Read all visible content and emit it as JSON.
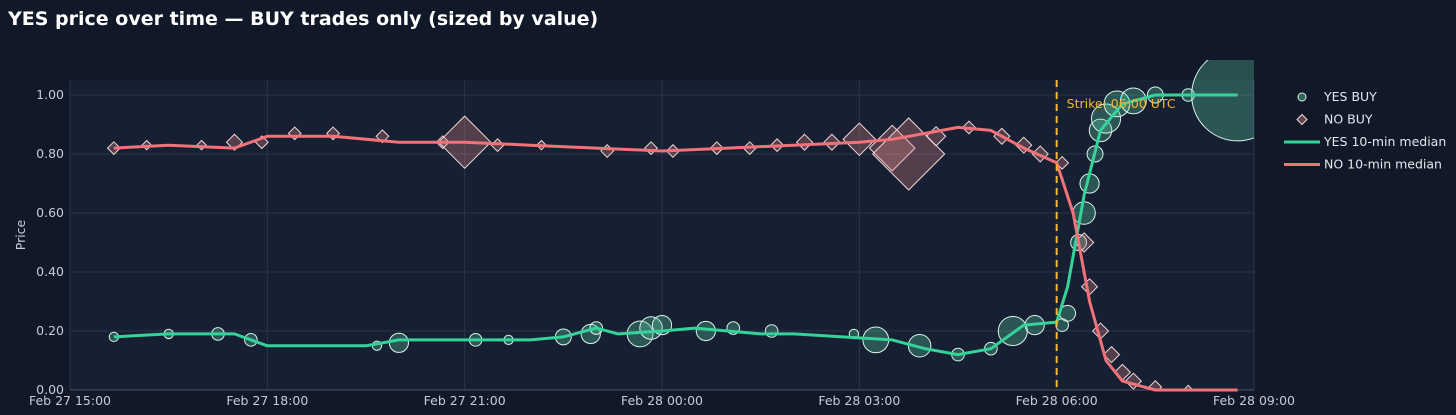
{
  "chart_data": {
    "type": "scatter",
    "title": "YES price over time — BUY trades only (sized by value)",
    "xlabel": "",
    "ylabel": "Price",
    "x_range": [
      "2026-02-27T15:00",
      "2026-02-28T09:00"
    ],
    "xticks": [
      {
        "t": "2026-02-27T15:00",
        "label": "Feb 27 15:00"
      },
      {
        "t": "2026-02-27T18:00",
        "label": "Feb 27 18:00"
      },
      {
        "t": "2026-02-27T21:00",
        "label": "Feb 27 21:00"
      },
      {
        "t": "2026-02-28T00:00",
        "label": "Feb 28 00:00"
      },
      {
        "t": "2026-02-28T03:00",
        "label": "Feb 28 03:00"
      },
      {
        "t": "2026-02-28T06:00",
        "label": "Feb 28 06:00"
      },
      {
        "t": "2026-02-28T09:00",
        "label": "Feb 28 09:00"
      }
    ],
    "ylim": [
      0,
      1
    ],
    "yticks": [
      {
        "v": 0.0,
        "label": "0.00"
      },
      {
        "v": 0.2,
        "label": "0.20"
      },
      {
        "v": 0.4,
        "label": "0.40"
      },
      {
        "v": 0.6,
        "label": "0.60"
      },
      {
        "v": 0.8,
        "label": "0.80"
      },
      {
        "v": 1.0,
        "label": "1.00"
      }
    ],
    "grid": true,
    "legend_position": "right",
    "annotation": {
      "t": "2026-02-28T06:00",
      "label": "Strike: 06:00 UTC",
      "color": "#f5b731"
    },
    "series": [
      {
        "name": "YES BUY",
        "kind": "markers",
        "symbol": "circle",
        "color": "#5fd4a8",
        "points": [
          {
            "t": "2026-02-27T15:40",
            "v": 0.18,
            "s": 1
          },
          {
            "t": "2026-02-27T16:30",
            "v": 0.19,
            "s": 1
          },
          {
            "t": "2026-02-27T17:15",
            "v": 0.19,
            "s": 2
          },
          {
            "t": "2026-02-27T17:45",
            "v": 0.17,
            "s": 2
          },
          {
            "t": "2026-02-27T19:40",
            "v": 0.15,
            "s": 1
          },
          {
            "t": "2026-02-27T20:00",
            "v": 0.16,
            "s": 4
          },
          {
            "t": "2026-02-27T21:10",
            "v": 0.17,
            "s": 2
          },
          {
            "t": "2026-02-27T21:40",
            "v": 0.17,
            "s": 1
          },
          {
            "t": "2026-02-27T22:30",
            "v": 0.18,
            "s": 3
          },
          {
            "t": "2026-02-27T22:55",
            "v": 0.19,
            "s": 4
          },
          {
            "t": "2026-02-27T23:00",
            "v": 0.21,
            "s": 2
          },
          {
            "t": "2026-02-27T23:40",
            "v": 0.19,
            "s": 6
          },
          {
            "t": "2026-02-27T23:50",
            "v": 0.21,
            "s": 5
          },
          {
            "t": "2026-02-28T00:00",
            "v": 0.22,
            "s": 4
          },
          {
            "t": "2026-02-28T00:40",
            "v": 0.2,
            "s": 4
          },
          {
            "t": "2026-02-28T01:05",
            "v": 0.21,
            "s": 2
          },
          {
            "t": "2026-02-28T01:40",
            "v": 0.2,
            "s": 2
          },
          {
            "t": "2026-02-28T02:55",
            "v": 0.19,
            "s": 1
          },
          {
            "t": "2026-02-28T03:15",
            "v": 0.17,
            "s": 6
          },
          {
            "t": "2026-02-28T03:55",
            "v": 0.15,
            "s": 5
          },
          {
            "t": "2026-02-28T04:30",
            "v": 0.12,
            "s": 2
          },
          {
            "t": "2026-02-28T05:00",
            "v": 0.14,
            "s": 2
          },
          {
            "t": "2026-02-28T05:20",
            "v": 0.2,
            "s": 7
          },
          {
            "t": "2026-02-28T05:40",
            "v": 0.22,
            "s": 4
          },
          {
            "t": "2026-02-28T06:05",
            "v": 0.22,
            "s": 2
          },
          {
            "t": "2026-02-28T06:10",
            "v": 0.26,
            "s": 3
          },
          {
            "t": "2026-02-28T06:20",
            "v": 0.5,
            "s": 3
          },
          {
            "t": "2026-02-28T06:25",
            "v": 0.6,
            "s": 5
          },
          {
            "t": "2026-02-28T06:30",
            "v": 0.7,
            "s": 4
          },
          {
            "t": "2026-02-28T06:35",
            "v": 0.8,
            "s": 3
          },
          {
            "t": "2026-02-28T06:40",
            "v": 0.88,
            "s": 5
          },
          {
            "t": "2026-02-28T06:45",
            "v": 0.92,
            "s": 7
          },
          {
            "t": "2026-02-28T06:55",
            "v": 0.97,
            "s": 6
          },
          {
            "t": "2026-02-28T07:10",
            "v": 0.98,
            "s": 6
          },
          {
            "t": "2026-02-28T07:30",
            "v": 1.0,
            "s": 3
          },
          {
            "t": "2026-02-28T08:00",
            "v": 1.0,
            "s": 2
          },
          {
            "t": "2026-02-28T08:45",
            "v": 1.0,
            "s": 26
          }
        ]
      },
      {
        "name": "NO BUY",
        "kind": "markers",
        "symbol": "diamond",
        "color": "#e0878a",
        "points": [
          {
            "t": "2026-02-27T15:40",
            "v": 0.82,
            "s": 2
          },
          {
            "t": "2026-02-27T16:10",
            "v": 0.83,
            "s": 1
          },
          {
            "t": "2026-02-27T17:00",
            "v": 0.83,
            "s": 1
          },
          {
            "t": "2026-02-27T17:30",
            "v": 0.84,
            "s": 3
          },
          {
            "t": "2026-02-27T17:55",
            "v": 0.84,
            "s": 2
          },
          {
            "t": "2026-02-27T18:25",
            "v": 0.87,
            "s": 2
          },
          {
            "t": "2026-02-27T19:00",
            "v": 0.87,
            "s": 2
          },
          {
            "t": "2026-02-27T19:45",
            "v": 0.86,
            "s": 2
          },
          {
            "t": "2026-02-27T20:40",
            "v": 0.84,
            "s": 2
          },
          {
            "t": "2026-02-27T21:00",
            "v": 0.84,
            "s": 14
          },
          {
            "t": "2026-02-27T21:30",
            "v": 0.83,
            "s": 2
          },
          {
            "t": "2026-02-27T22:10",
            "v": 0.83,
            "s": 1
          },
          {
            "t": "2026-02-27T23:10",
            "v": 0.81,
            "s": 2
          },
          {
            "t": "2026-02-27T23:50",
            "v": 0.82,
            "s": 2
          },
          {
            "t": "2026-02-28T00:10",
            "v": 0.81,
            "s": 2
          },
          {
            "t": "2026-02-28T00:50",
            "v": 0.82,
            "s": 2
          },
          {
            "t": "2026-02-28T01:20",
            "v": 0.82,
            "s": 2
          },
          {
            "t": "2026-02-28T01:45",
            "v": 0.83,
            "s": 2
          },
          {
            "t": "2026-02-28T02:10",
            "v": 0.84,
            "s": 3
          },
          {
            "t": "2026-02-28T02:35",
            "v": 0.84,
            "s": 3
          },
          {
            "t": "2026-02-28T03:00",
            "v": 0.85,
            "s": 8
          },
          {
            "t": "2026-02-28T03:30",
            "v": 0.82,
            "s": 12
          },
          {
            "t": "2026-02-28T03:45",
            "v": 0.8,
            "s": 20
          },
          {
            "t": "2026-02-28T04:10",
            "v": 0.86,
            "s": 4
          },
          {
            "t": "2026-02-28T04:40",
            "v": 0.89,
            "s": 2
          },
          {
            "t": "2026-02-28T05:10",
            "v": 0.86,
            "s": 3
          },
          {
            "t": "2026-02-28T05:30",
            "v": 0.83,
            "s": 3
          },
          {
            "t": "2026-02-28T05:45",
            "v": 0.8,
            "s": 3
          },
          {
            "t": "2026-02-28T06:05",
            "v": 0.77,
            "s": 2
          },
          {
            "t": "2026-02-28T06:25",
            "v": 0.5,
            "s": 4
          },
          {
            "t": "2026-02-28T06:30",
            "v": 0.35,
            "s": 3
          },
          {
            "t": "2026-02-28T06:40",
            "v": 0.2,
            "s": 3
          },
          {
            "t": "2026-02-28T06:50",
            "v": 0.12,
            "s": 3
          },
          {
            "t": "2026-02-28T07:00",
            "v": 0.06,
            "s": 3
          },
          {
            "t": "2026-02-28T07:10",
            "v": 0.03,
            "s": 3
          },
          {
            "t": "2026-02-28T07:30",
            "v": 0.01,
            "s": 2
          },
          {
            "t": "2026-02-28T08:00",
            "v": 0.0,
            "s": 1
          }
        ]
      },
      {
        "name": "YES 10-min median",
        "kind": "line",
        "color": "#34d399",
        "points": [
          {
            "t": "2026-02-27T15:40",
            "v": 0.18
          },
          {
            "t": "2026-02-27T16:30",
            "v": 0.19
          },
          {
            "t": "2026-02-27T17:30",
            "v": 0.19
          },
          {
            "t": "2026-02-27T18:00",
            "v": 0.15
          },
          {
            "t": "2026-02-27T19:30",
            "v": 0.15
          },
          {
            "t": "2026-02-27T20:00",
            "v": 0.17
          },
          {
            "t": "2026-02-27T21:00",
            "v": 0.17
          },
          {
            "t": "2026-02-27T21:30",
            "v": 0.17
          },
          {
            "t": "2026-02-27T22:00",
            "v": 0.17
          },
          {
            "t": "2026-02-27T22:30",
            "v": 0.18
          },
          {
            "t": "2026-02-27T23:00",
            "v": 0.21
          },
          {
            "t": "2026-02-27T23:20",
            "v": 0.19
          },
          {
            "t": "2026-02-28T00:00",
            "v": 0.2
          },
          {
            "t": "2026-02-28T00:30",
            "v": 0.21
          },
          {
            "t": "2026-02-28T01:00",
            "v": 0.2
          },
          {
            "t": "2026-02-28T01:30",
            "v": 0.19
          },
          {
            "t": "2026-02-28T02:00",
            "v": 0.19
          },
          {
            "t": "2026-02-28T03:30",
            "v": 0.17
          },
          {
            "t": "2026-02-28T04:00",
            "v": 0.14
          },
          {
            "t": "2026-02-28T04:30",
            "v": 0.12
          },
          {
            "t": "2026-02-28T05:00",
            "v": 0.14
          },
          {
            "t": "2026-02-28T05:30",
            "v": 0.22
          },
          {
            "t": "2026-02-28T06:00",
            "v": 0.23
          },
          {
            "t": "2026-02-28T06:10",
            "v": 0.35
          },
          {
            "t": "2026-02-28T06:25",
            "v": 0.66
          },
          {
            "t": "2026-02-28T06:40",
            "v": 0.88
          },
          {
            "t": "2026-02-28T07:00",
            "v": 0.97
          },
          {
            "t": "2026-02-28T07:30",
            "v": 1.0
          },
          {
            "t": "2026-02-28T08:45",
            "v": 1.0
          }
        ]
      },
      {
        "name": "NO 10-min median",
        "kind": "line",
        "color": "#f2727a",
        "points": [
          {
            "t": "2026-02-27T15:40",
            "v": 0.82
          },
          {
            "t": "2026-02-27T16:30",
            "v": 0.83
          },
          {
            "t": "2026-02-27T17:30",
            "v": 0.82
          },
          {
            "t": "2026-02-27T18:00",
            "v": 0.86
          },
          {
            "t": "2026-02-27T19:00",
            "v": 0.86
          },
          {
            "t": "2026-02-27T20:00",
            "v": 0.84
          },
          {
            "t": "2026-02-27T21:00",
            "v": 0.84
          },
          {
            "t": "2026-02-27T22:00",
            "v": 0.83
          },
          {
            "t": "2026-02-27T23:00",
            "v": 0.82
          },
          {
            "t": "2026-02-28T00:00",
            "v": 0.81
          },
          {
            "t": "2026-02-28T01:00",
            "v": 0.82
          },
          {
            "t": "2026-02-28T02:00",
            "v": 0.83
          },
          {
            "t": "2026-02-28T03:00",
            "v": 0.84
          },
          {
            "t": "2026-02-28T03:30",
            "v": 0.85
          },
          {
            "t": "2026-02-28T04:00",
            "v": 0.87
          },
          {
            "t": "2026-02-28T04:30",
            "v": 0.89
          },
          {
            "t": "2026-02-28T05:00",
            "v": 0.88
          },
          {
            "t": "2026-02-28T05:30",
            "v": 0.82
          },
          {
            "t": "2026-02-28T06:00",
            "v": 0.77
          },
          {
            "t": "2026-02-28T06:15",
            "v": 0.6
          },
          {
            "t": "2026-02-28T06:30",
            "v": 0.3
          },
          {
            "t": "2026-02-28T06:45",
            "v": 0.1
          },
          {
            "t": "2026-02-28T07:00",
            "v": 0.03
          },
          {
            "t": "2026-02-28T07:30",
            "v": 0.0
          },
          {
            "t": "2026-02-28T08:45",
            "v": 0.0
          }
        ]
      }
    ]
  },
  "colors": {
    "background": "#111827",
    "plot_background": "#162032",
    "grid": "#2a3548"
  }
}
